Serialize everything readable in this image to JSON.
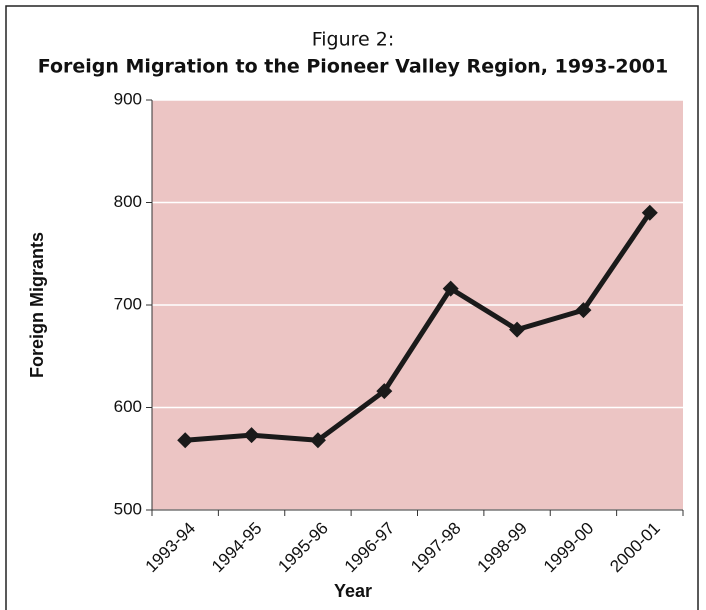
{
  "chart_data": {
    "type": "line",
    "supertitle": "Figure 2:",
    "title": "Foreign Migration to the Pioneer Valley Region, 1993-2001",
    "x_label": "Year",
    "y_label": "Foreign Migrants",
    "categories": [
      "1993-94",
      "1994-95",
      "1995-96",
      "1996-97",
      "1997-98",
      "1998-99",
      "1999-00",
      "2000-01"
    ],
    "series": [
      {
        "name": "Foreign Migrants",
        "color": "#1a1a1a",
        "values": [
          568,
          573,
          568,
          616,
          716,
          676,
          695,
          790
        ]
      }
    ],
    "ylim": [
      500,
      900
    ],
    "yticks": [
      500,
      600,
      700,
      800,
      900
    ],
    "grid": true,
    "background": "#ecc5c4"
  }
}
